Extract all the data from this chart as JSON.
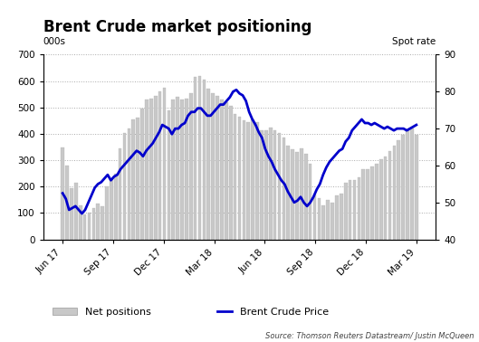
{
  "title": "Brent Crude market positioning",
  "left_label": "000s",
  "right_label": "Spot rate",
  "source_text": "Source: Thomson Reuters Datastream/ Justin McQueen",
  "bar_legend": "Net positions",
  "line_legend": "Brent Crude Price",
  "left_ylim": [
    0,
    700
  ],
  "right_ylim": [
    40,
    90
  ],
  "left_yticks": [
    0,
    100,
    200,
    300,
    400,
    500,
    600,
    700
  ],
  "right_yticks": [
    40,
    50,
    60,
    70,
    80,
    90
  ],
  "xtick_labels": [
    "Jun 17",
    "Sep 17",
    "Dec 17",
    "Mar 18",
    "Jun 18",
    "Sep 18",
    "Dec 18",
    "Mar 19"
  ],
  "bar_color": "#c8c8c8",
  "line_color": "#0000cc",
  "bar_data": [
    350,
    280,
    195,
    215,
    130,
    95,
    100,
    120,
    135,
    125,
    200,
    230,
    250,
    345,
    405,
    420,
    455,
    460,
    495,
    530,
    535,
    545,
    560,
    575,
    490,
    530,
    540,
    530,
    535,
    555,
    615,
    620,
    605,
    570,
    555,
    545,
    530,
    520,
    505,
    475,
    465,
    450,
    445,
    455,
    445,
    415,
    415,
    425,
    415,
    405,
    385,
    355,
    340,
    330,
    345,
    325,
    285,
    170,
    155,
    130,
    150,
    140,
    165,
    175,
    215,
    225,
    225,
    235,
    265,
    265,
    275,
    285,
    305,
    315,
    335,
    355,
    375,
    395,
    415,
    420,
    395
  ],
  "line_data": [
    52.5,
    51,
    48,
    48.5,
    49,
    48,
    47,
    48,
    50,
    52,
    54,
    55,
    55.5,
    56.5,
    57.5,
    56,
    57,
    57.5,
    59,
    60,
    61,
    62,
    63,
    64,
    63.5,
    62.5,
    64,
    65,
    66,
    67.5,
    69,
    71,
    70.5,
    70,
    68.5,
    70,
    70,
    71,
    71.5,
    73.5,
    74.5,
    74.5,
    75.5,
    75.5,
    74.5,
    73.5,
    73.5,
    74.5,
    75.5,
    76.5,
    76.5,
    77.5,
    78.5,
    80,
    80.5,
    79.5,
    79,
    77.5,
    74.5,
    72.5,
    71,
    69,
    67.5,
    64.5,
    62.5,
    61,
    59,
    57.5,
    56,
    55,
    53,
    51.5,
    50,
    50.5,
    51.5,
    50,
    49,
    50,
    51.5,
    53.5,
    55,
    57.5,
    59.5,
    61,
    62,
    63,
    64,
    64.5,
    66.5,
    67.5,
    69.5,
    70.5,
    71.5,
    72.5,
    71.5,
    71.5,
    71,
    71.5,
    71,
    70.5,
    70,
    70.5,
    70,
    69.5,
    70,
    70,
    70,
    69.5,
    70,
    70.5,
    71
  ]
}
